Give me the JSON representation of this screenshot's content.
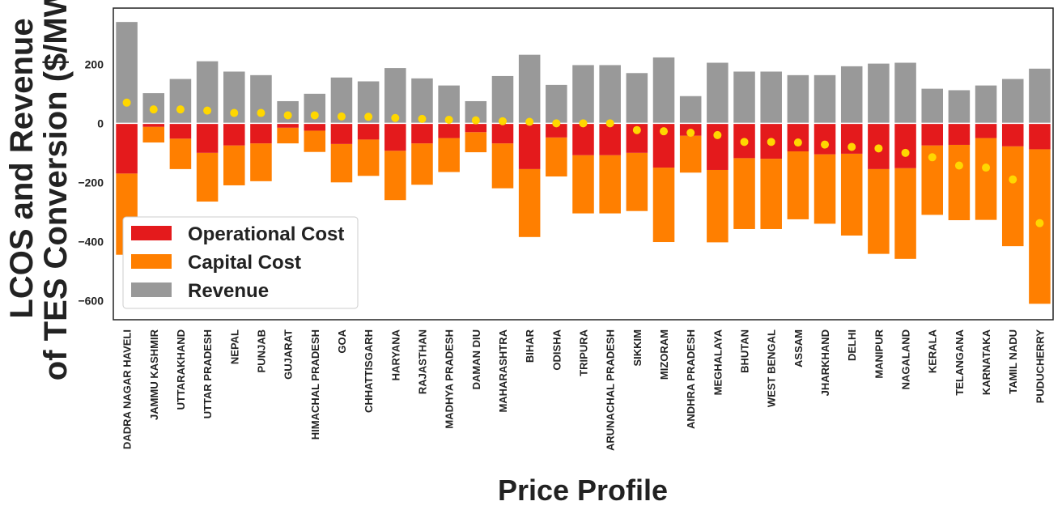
{
  "chart_data": {
    "type": "bar",
    "xlabel": "Price Profile",
    "ylabel_lines": [
      "LCOS and Revenue",
      "of TES Conversion ($/MWh)"
    ],
    "ylim": [
      -665,
      390
    ],
    "yticks": [
      -600,
      -400,
      -200,
      0,
      200
    ],
    "categories": [
      "DADRA  NAGAR HAVELI",
      "JAMMU  KASHMIR",
      "UTTARAKHAND",
      "UTTAR PRADESH",
      "NEPAL",
      "PUNJAB",
      "GUJARAT",
      "HIMACHAL PRADESH",
      "GOA",
      "CHHATTISGARH",
      "HARYANA",
      "RAJASTHAN",
      "MADHYA PRADESH",
      "DAMAN  DIU",
      "MAHARASHTRA",
      "BIHAR",
      "ODISHA",
      "TRIPURA",
      "ARUNACHAL PRADESH",
      "SIKKIM",
      "MIZORAM",
      "ANDHRA PRADESH",
      "MEGHALAYA",
      "BHUTAN",
      "WEST BENGAL",
      "ASSAM",
      "JHARKHAND",
      "DELHI",
      "MANIPUR",
      "NAGALAND",
      "KERALA",
      "TELANGANA",
      "KARNATAKA",
      "TAMIL NADU",
      "PUDUCHERRY"
    ],
    "series": [
      {
        "name": "Operational Cost",
        "color": "#e41a1c",
        "values": [
          -170,
          -12,
          -52,
          -100,
          -75,
          -68,
          -15,
          -25,
          -70,
          -55,
          -93,
          -68,
          -50,
          -30,
          -68,
          -155,
          -48,
          -108,
          -108,
          -100,
          -150,
          -42,
          -158,
          -118,
          -120,
          -95,
          -105,
          -103,
          -155,
          -152,
          -75,
          -73,
          -50,
          -78,
          -88
        ]
      },
      {
        "name": "Capital Cost",
        "color": "#ff7f00",
        "values": [
          -275,
          -53,
          -103,
          -165,
          -135,
          -128,
          -53,
          -72,
          -130,
          -123,
          -167,
          -140,
          -115,
          -68,
          -152,
          -230,
          -132,
          -197,
          -197,
          -197,
          -252,
          -125,
          -245,
          -240,
          -238,
          -230,
          -235,
          -277,
          -287,
          -307,
          -235,
          -255,
          -277,
          -338,
          -523
        ]
      },
      {
        "name": "Revenue",
        "color": "#999999",
        "values": [
          343,
          102,
          150,
          210,
          175,
          163,
          75,
          100,
          155,
          142,
          187,
          152,
          128,
          75,
          160,
          232,
          130,
          197,
          197,
          170,
          223,
          92,
          205,
          175,
          175,
          163,
          163,
          193,
          202,
          205,
          117,
          112,
          128,
          150,
          185
        ]
      },
      {
        "color": "#ffd700",
        "values": [
          70,
          47,
          47,
          43,
          35,
          35,
          27,
          27,
          23,
          22,
          18,
          15,
          12,
          10,
          7,
          5,
          0,
          0,
          0,
          -23,
          -27,
          -32,
          -40,
          -63,
          -63,
          -65,
          -72,
          -80,
          -85,
          -100,
          -115,
          -143,
          -150,
          -190,
          -338
        ]
      }
    ],
    "legend": {
      "placement": "lower-left",
      "entries": [
        "Operational Cost",
        "Capital Cost",
        "Revenue"
      ]
    },
    "grid": false
  }
}
